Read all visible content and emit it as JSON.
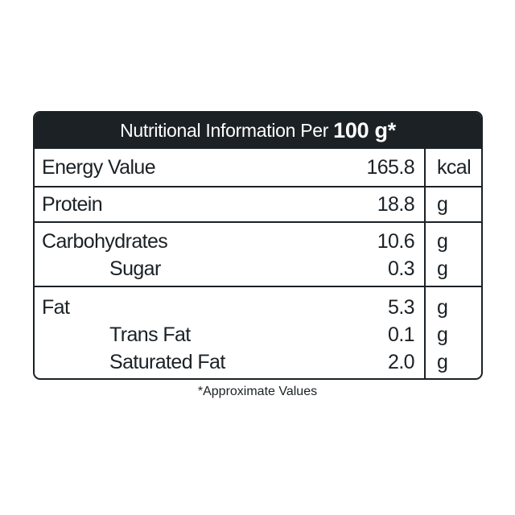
{
  "table": {
    "header": {
      "prefix": "Nutritional Information Per",
      "amount": "100 g*"
    },
    "rows": {
      "energy": {
        "name": "Energy Value",
        "value": "165.8",
        "unit": "kcal"
      },
      "protein": {
        "name": "Protein",
        "value": "18.8",
        "unit": "g"
      },
      "carbs": {
        "name": "Carbohydrates",
        "value": "10.6",
        "unit": "g"
      },
      "sugar": {
        "name": "Sugar",
        "value": "0.3",
        "unit": "g"
      },
      "fat": {
        "name": "Fat",
        "value": "5.3",
        "unit": "g"
      },
      "trans_fat": {
        "name": "Trans Fat",
        "value": "0.1",
        "unit": "g"
      },
      "saturated_fat": {
        "name": "Saturated Fat",
        "value": "2.0",
        "unit": "g"
      }
    }
  },
  "footnote": "*Approximate Values",
  "colors": {
    "ink": "#1b2125",
    "background": "#ffffff"
  }
}
